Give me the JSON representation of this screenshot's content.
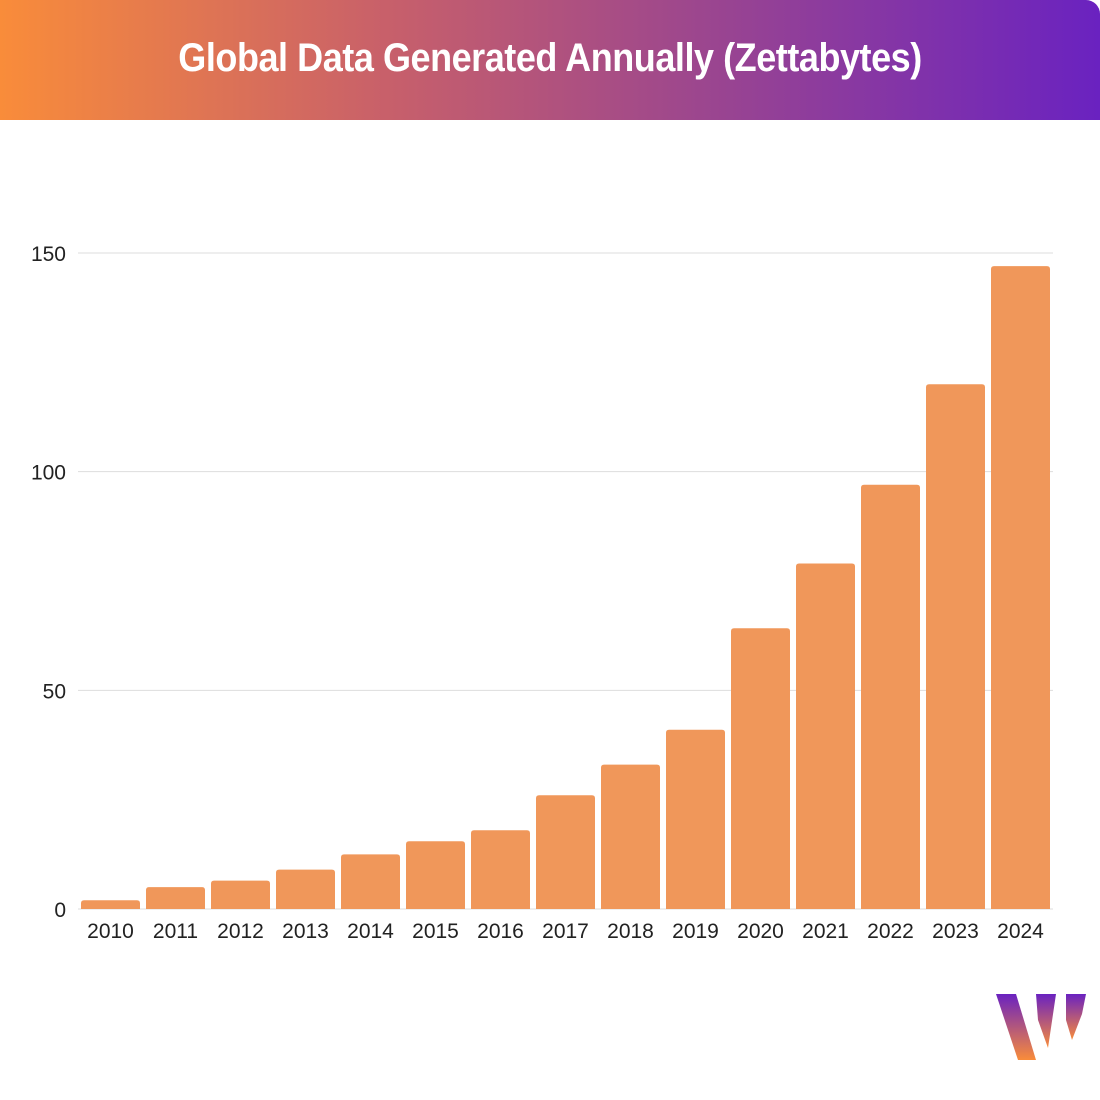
{
  "chart_data": {
    "type": "bar",
    "title": "Global Data Generated Annually (Zettabytes)",
    "xlabel": "",
    "ylabel": "",
    "categories": [
      "2010",
      "2011",
      "2012",
      "2013",
      "2014",
      "2015",
      "2016",
      "2017",
      "2018",
      "2019",
      "2020",
      "2021",
      "2022",
      "2023",
      "2024"
    ],
    "values": [
      2,
      5,
      6.5,
      9,
      12.5,
      15.5,
      18,
      26,
      33,
      41,
      64.2,
      79,
      97,
      120,
      147
    ],
    "ylim": [
      0,
      150
    ],
    "yticks": [
      0,
      50,
      100,
      150
    ],
    "grid": true,
    "legend": "none",
    "colors": {
      "bar": "#f0975a",
      "grid": "#dddddd",
      "header_start": "#f98c3a",
      "header_end": "#6a22c0"
    }
  },
  "logo": {
    "letter": "W"
  }
}
